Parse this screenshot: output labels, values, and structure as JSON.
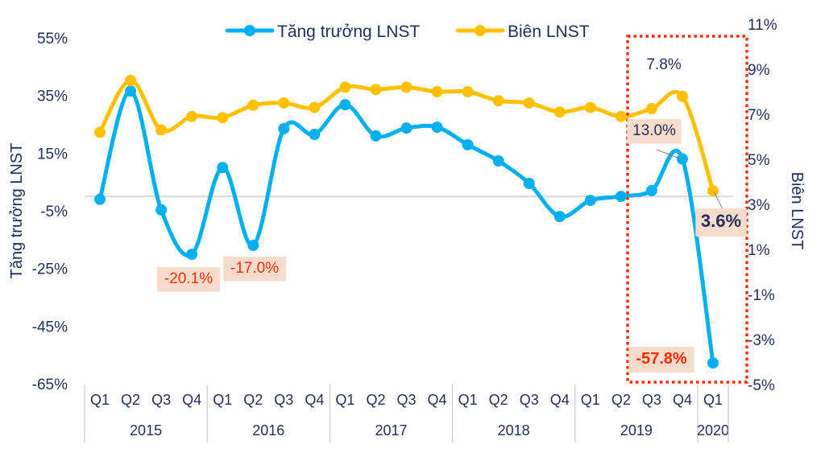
{
  "chart_data": {
    "type": "line",
    "categories": [
      "Q1",
      "Q2",
      "Q3",
      "Q4",
      "Q1",
      "Q2",
      "Q3",
      "Q4",
      "Q1",
      "Q2",
      "Q3",
      "Q4",
      "Q1",
      "Q2",
      "Q3",
      "Q4",
      "Q1",
      "Q2",
      "Q3",
      "Q4",
      "Q1"
    ],
    "years": [
      {
        "label": "2015",
        "count": 4
      },
      {
        "label": "2016",
        "count": 4
      },
      {
        "label": "2017",
        "count": 4
      },
      {
        "label": "2018",
        "count": 4
      },
      {
        "label": "2019",
        "count": 4
      },
      {
        "label": "2020",
        "count": 1
      }
    ],
    "series": [
      {
        "name": "Tăng trưởng LNST",
        "axis": "left",
        "color": "#00b0f0",
        "values": [
          -1.0,
          36.5,
          -4.7,
          -20.1,
          10.0,
          -17.0,
          23.5,
          21.5,
          31.8,
          21.0,
          23.7,
          24.0,
          17.9,
          12.3,
          4.5,
          -7.0,
          -1.4,
          0.0,
          2.0,
          13.0,
          -57.8
        ]
      },
      {
        "name": "Biên LNST",
        "axis": "right",
        "color": "#ffc000",
        "values": [
          6.2,
          8.5,
          6.3,
          6.9,
          6.85,
          7.4,
          7.5,
          7.3,
          8.2,
          8.1,
          8.2,
          8.0,
          8.0,
          7.6,
          7.5,
          7.1,
          7.3,
          6.9,
          7.25,
          7.8,
          3.6
        ]
      }
    ],
    "ylabel_left": "Tăng trưởng LNST",
    "ylabel_right": "Biên LNST",
    "ylim_left": [
      -65,
      55
    ],
    "yticks_left": [
      "55%",
      "35%",
      "15%",
      "-5%",
      "-25%",
      "-45%",
      "-65%"
    ],
    "ylim_right": [
      -5,
      11
    ],
    "yticks_right": [
      "11%",
      "9%",
      "7%",
      "5%",
      "3%",
      "1%",
      "-1%",
      "-3%",
      "-5%"
    ],
    "legend_placement": "top",
    "grid": false,
    "annotations": [
      {
        "text": "-20.1%",
        "series": 0,
        "index": 3,
        "style": "red"
      },
      {
        "text": "-17.0%",
        "series": 0,
        "index": 5,
        "style": "red"
      },
      {
        "text": "13.0%",
        "series": 0,
        "index": 19,
        "style": "navy"
      },
      {
        "text": "-57.8%",
        "series": 0,
        "index": 20,
        "style": "red-bold"
      },
      {
        "text": "7.8%",
        "series": 1,
        "index": 19,
        "style": "plain"
      },
      {
        "text": "3.6%",
        "series": 1,
        "index": 20,
        "style": "navy-bold"
      }
    ],
    "highlight_color": "#ff2a00",
    "label_bg_color": "#f8dccb"
  }
}
